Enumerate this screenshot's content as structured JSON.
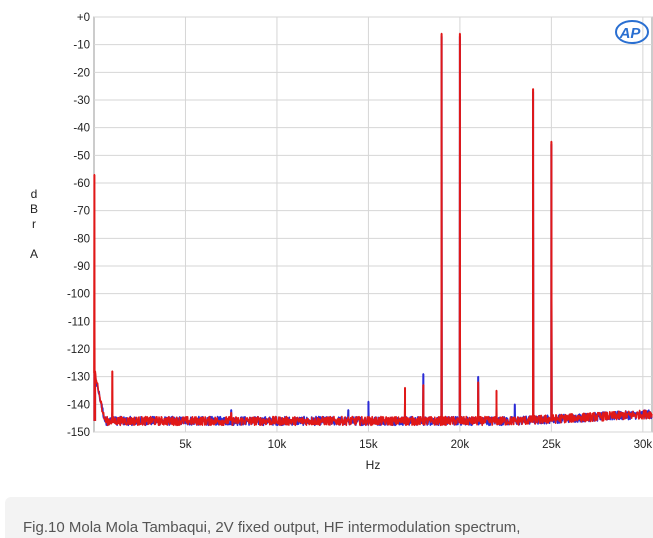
{
  "logo_text": "AP",
  "caption": "Fig.10 Mola Mola Tambaqui, 2V fixed output, HF intermodulation spectrum,",
  "chart_data": {
    "type": "line",
    "xlabel": "Hz",
    "ylabel_lines": [
      "d",
      "B",
      "r",
      "",
      "A"
    ],
    "xlim": [
      0,
      30500
    ],
    "ylim": [
      -150,
      0
    ],
    "x_ticks": [
      {
        "value": 5000,
        "label": "5k"
      },
      {
        "value": 10000,
        "label": "10k"
      },
      {
        "value": 15000,
        "label": "15k"
      },
      {
        "value": 20000,
        "label": "20k"
      },
      {
        "value": 25000,
        "label": "25k"
      },
      {
        "value": 30000,
        "label": "30k"
      }
    ],
    "y_ticks": [
      {
        "value": 0,
        "label": "+0"
      },
      {
        "value": -10,
        "label": "-10"
      },
      {
        "value": -20,
        "label": "-20"
      },
      {
        "value": -30,
        "label": "-30"
      },
      {
        "value": -40,
        "label": "-40"
      },
      {
        "value": -50,
        "label": "-50"
      },
      {
        "value": -60,
        "label": "-60"
      },
      {
        "value": -70,
        "label": "-70"
      },
      {
        "value": -80,
        "label": "-80"
      },
      {
        "value": -90,
        "label": "-90"
      },
      {
        "value": -100,
        "label": "-100"
      },
      {
        "value": -110,
        "label": "-110"
      },
      {
        "value": -120,
        "label": "-120"
      },
      {
        "value": -130,
        "label": "-130"
      },
      {
        "value": -140,
        "label": "-140"
      },
      {
        "value": -150,
        "label": "-150"
      }
    ],
    "grid": true,
    "noise_floor": -146,
    "series": [
      {
        "color": "#2b2bd6",
        "peaks": [
          {
            "x": 20,
            "y": -129
          },
          {
            "x": 60,
            "y": -136
          },
          {
            "x": 1000,
            "y": -143
          },
          {
            "x": 7500,
            "y": -142
          },
          {
            "x": 13900,
            "y": -142
          },
          {
            "x": 15000,
            "y": -139
          },
          {
            "x": 18000,
            "y": -129
          },
          {
            "x": 19000,
            "y": -7
          },
          {
            "x": 20000,
            "y": -7
          },
          {
            "x": 21000,
            "y": -130
          },
          {
            "x": 23000,
            "y": -140
          },
          {
            "x": 24000,
            "y": -27
          },
          {
            "x": 25000,
            "y": -46
          }
        ]
      },
      {
        "color": "#e01818",
        "peaks": [
          {
            "x": 20,
            "y": -57
          },
          {
            "x": 60,
            "y": -128
          },
          {
            "x": 1000,
            "y": -128
          },
          {
            "x": 7500,
            "y": -143
          },
          {
            "x": 17000,
            "y": -134
          },
          {
            "x": 18000,
            "y": -133
          },
          {
            "x": 19000,
            "y": -6
          },
          {
            "x": 20000,
            "y": -6
          },
          {
            "x": 21000,
            "y": -132
          },
          {
            "x": 22000,
            "y": -135
          },
          {
            "x": 24000,
            "y": -26
          },
          {
            "x": 25000,
            "y": -45
          }
        ]
      }
    ]
  }
}
